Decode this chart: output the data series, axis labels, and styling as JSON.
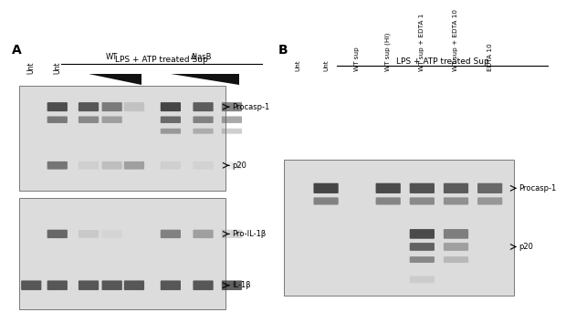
{
  "panel_A_label": "A",
  "panel_B_label": "B",
  "panelA_title": "LPS + ATP treated Sup",
  "panelA_upper_label1": "Procasp-1",
  "panelA_upper_label2": "p20",
  "panelA_lower_label1": "Pro-IL-1β",
  "panelA_lower_label2": "IL-1β",
  "panelB_title": "LPS + ATP treated Sup",
  "panelB_col_labels": [
    "Unt",
    "Unt",
    "WT sup",
    "WT sup (HI)",
    "WT sup + EDTA 1",
    "WT sup + EDTA 10",
    "EDTA 10"
  ],
  "panelB_upper_label1": "Procasp-1",
  "panelB_upper_label2": "p20",
  "fig_width": 6.07,
  "fig_height": 3.13
}
